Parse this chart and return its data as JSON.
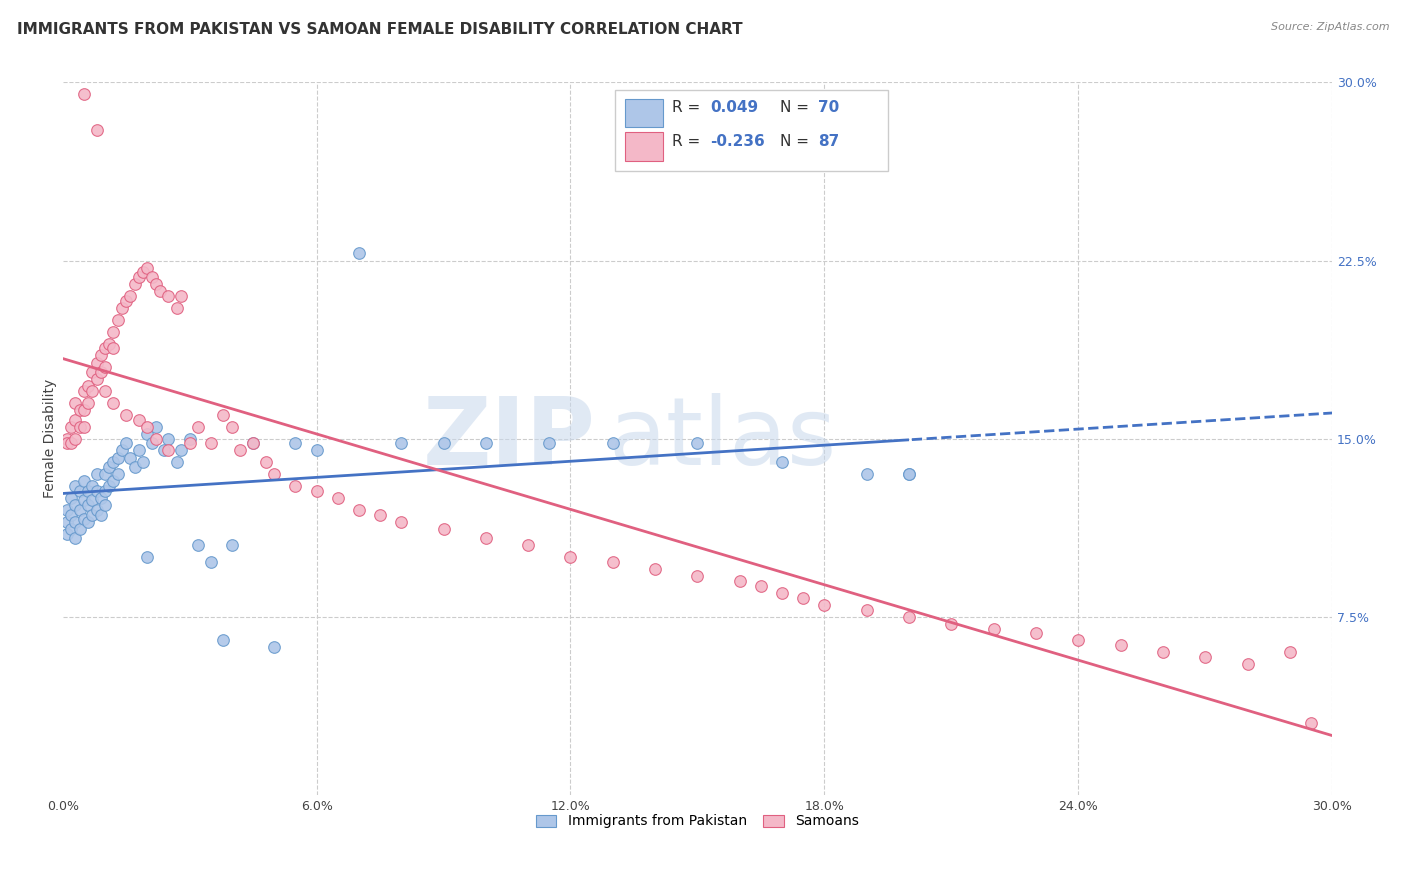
{
  "title": "IMMIGRANTS FROM PAKISTAN VS SAMOAN FEMALE DISABILITY CORRELATION CHART",
  "source": "Source: ZipAtlas.com",
  "ylabel": "Female Disability",
  "xlim": [
    0.0,
    0.3
  ],
  "ylim": [
    0.0,
    0.3
  ],
  "ytick_vals": [
    0.075,
    0.15,
    0.225,
    0.3
  ],
  "ytick_labels": [
    "7.5%",
    "15.0%",
    "22.5%",
    "30.0%"
  ],
  "xtick_vals": [
    0.0,
    0.06,
    0.12,
    0.18,
    0.24,
    0.3
  ],
  "xtick_labels": [
    "0.0%",
    "6.0%",
    "12.0%",
    "18.0%",
    "24.0%",
    "30.0%"
  ],
  "pakistan": {
    "name": "Immigrants from Pakistan",
    "color": "#aec6e8",
    "edge_color": "#6699cc",
    "line_color": "#4472c4",
    "R": 0.049,
    "N": 70,
    "x": [
      0.001,
      0.001,
      0.001,
      0.002,
      0.002,
      0.002,
      0.003,
      0.003,
      0.003,
      0.003,
      0.004,
      0.004,
      0.004,
      0.005,
      0.005,
      0.005,
      0.006,
      0.006,
      0.006,
      0.007,
      0.007,
      0.007,
      0.008,
      0.008,
      0.008,
      0.009,
      0.009,
      0.01,
      0.01,
      0.01,
      0.011,
      0.011,
      0.012,
      0.012,
      0.013,
      0.013,
      0.014,
      0.015,
      0.016,
      0.017,
      0.018,
      0.019,
      0.02,
      0.021,
      0.022,
      0.024,
      0.025,
      0.027,
      0.028,
      0.03,
      0.032,
      0.035,
      0.038,
      0.04,
      0.045,
      0.05,
      0.055,
      0.06,
      0.07,
      0.08,
      0.09,
      0.1,
      0.115,
      0.13,
      0.15,
      0.17,
      0.19,
      0.2,
      0.2,
      0.02
    ],
    "y": [
      0.12,
      0.115,
      0.11,
      0.125,
      0.118,
      0.112,
      0.13,
      0.122,
      0.115,
      0.108,
      0.128,
      0.12,
      0.112,
      0.132,
      0.124,
      0.116,
      0.128,
      0.122,
      0.115,
      0.13,
      0.124,
      0.118,
      0.135,
      0.128,
      0.12,
      0.125,
      0.118,
      0.135,
      0.128,
      0.122,
      0.138,
      0.13,
      0.14,
      0.132,
      0.142,
      0.135,
      0.145,
      0.148,
      0.142,
      0.138,
      0.145,
      0.14,
      0.152,
      0.148,
      0.155,
      0.145,
      0.15,
      0.14,
      0.145,
      0.15,
      0.105,
      0.098,
      0.065,
      0.105,
      0.148,
      0.062,
      0.148,
      0.145,
      0.228,
      0.148,
      0.148,
      0.148,
      0.148,
      0.148,
      0.148,
      0.14,
      0.135,
      0.135,
      0.135,
      0.1
    ]
  },
  "samoans": {
    "name": "Samoans",
    "color": "#f4b8c8",
    "edge_color": "#e06080",
    "line_color": "#e06080",
    "R": -0.236,
    "N": 87,
    "x": [
      0.001,
      0.001,
      0.002,
      0.002,
      0.003,
      0.003,
      0.003,
      0.004,
      0.004,
      0.005,
      0.005,
      0.005,
      0.006,
      0.006,
      0.007,
      0.007,
      0.008,
      0.008,
      0.009,
      0.009,
      0.01,
      0.01,
      0.011,
      0.012,
      0.012,
      0.013,
      0.014,
      0.015,
      0.016,
      0.017,
      0.018,
      0.019,
      0.02,
      0.021,
      0.022,
      0.023,
      0.025,
      0.027,
      0.028,
      0.03,
      0.032,
      0.035,
      0.038,
      0.04,
      0.042,
      0.045,
      0.048,
      0.05,
      0.055,
      0.06,
      0.065,
      0.07,
      0.075,
      0.08,
      0.09,
      0.1,
      0.11,
      0.12,
      0.13,
      0.14,
      0.15,
      0.16,
      0.165,
      0.17,
      0.175,
      0.18,
      0.19,
      0.2,
      0.21,
      0.22,
      0.23,
      0.24,
      0.25,
      0.26,
      0.27,
      0.28,
      0.29,
      0.295,
      0.005,
      0.008,
      0.01,
      0.012,
      0.015,
      0.018,
      0.02,
      0.022,
      0.025
    ],
    "y": [
      0.15,
      0.148,
      0.155,
      0.148,
      0.165,
      0.158,
      0.15,
      0.162,
      0.155,
      0.17,
      0.162,
      0.155,
      0.172,
      0.165,
      0.178,
      0.17,
      0.182,
      0.175,
      0.185,
      0.178,
      0.188,
      0.18,
      0.19,
      0.195,
      0.188,
      0.2,
      0.205,
      0.208,
      0.21,
      0.215,
      0.218,
      0.22,
      0.222,
      0.218,
      0.215,
      0.212,
      0.21,
      0.205,
      0.21,
      0.148,
      0.155,
      0.148,
      0.16,
      0.155,
      0.145,
      0.148,
      0.14,
      0.135,
      0.13,
      0.128,
      0.125,
      0.12,
      0.118,
      0.115,
      0.112,
      0.108,
      0.105,
      0.1,
      0.098,
      0.095,
      0.092,
      0.09,
      0.088,
      0.085,
      0.083,
      0.08,
      0.078,
      0.075,
      0.072,
      0.07,
      0.068,
      0.065,
      0.063,
      0.06,
      0.058,
      0.055,
      0.06,
      0.03,
      0.295,
      0.28,
      0.17,
      0.165,
      0.16,
      0.158,
      0.155,
      0.15,
      0.145
    ]
  },
  "watermark_zip": "ZIP",
  "watermark_atlas": "atlas",
  "background_color": "#ffffff",
  "grid_color": "#cccccc",
  "title_fontsize": 11,
  "axis_label_fontsize": 10,
  "tick_fontsize": 9
}
